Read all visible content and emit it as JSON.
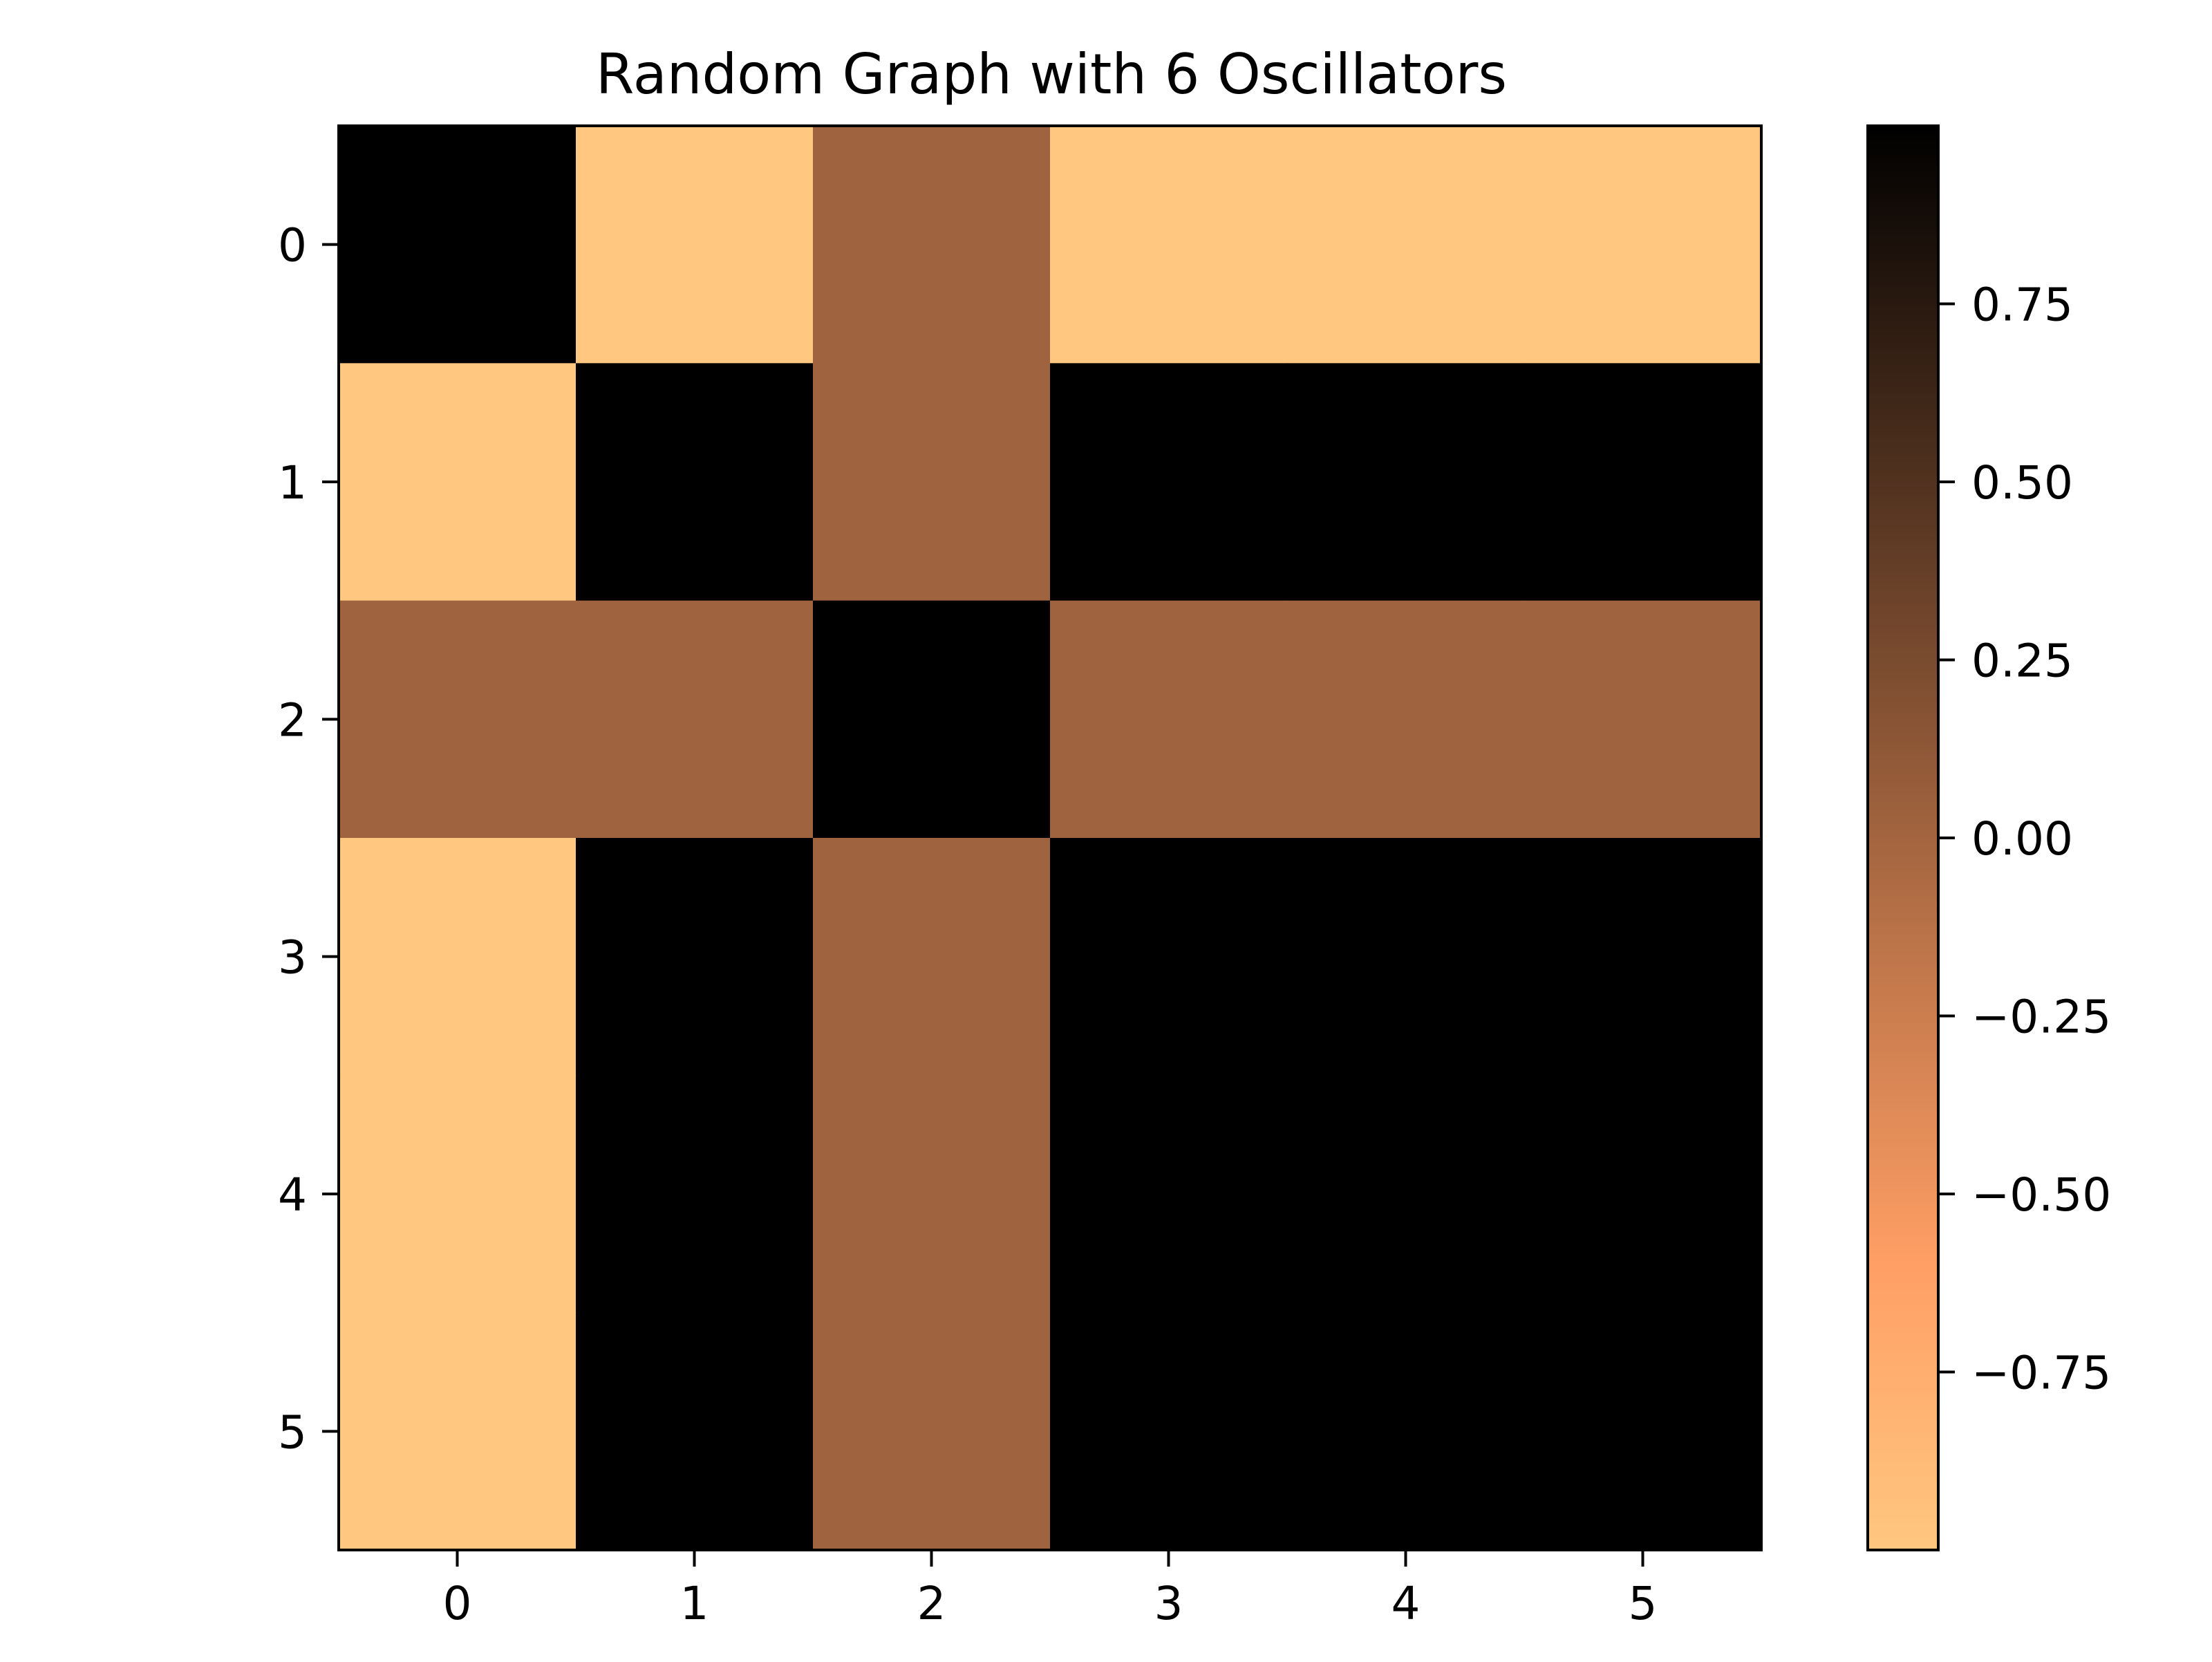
{
  "chart_data": {
    "type": "heatmap",
    "title": "Random Graph with 6 Oscillators",
    "xlabel": "",
    "ylabel": "",
    "x_categories": [
      "0",
      "1",
      "2",
      "3",
      "4",
      "5"
    ],
    "y_categories": [
      "0",
      "1",
      "2",
      "3",
      "4",
      "5"
    ],
    "values": [
      [
        1.0,
        -1.0,
        0.0,
        -1.0,
        -1.0,
        -1.0
      ],
      [
        -1.0,
        1.0,
        0.0,
        1.0,
        1.0,
        1.0
      ],
      [
        0.0,
        0.0,
        1.0,
        0.0,
        0.0,
        0.0
      ],
      [
        -1.0,
        1.0,
        0.0,
        1.0,
        1.0,
        1.0
      ],
      [
        -1.0,
        1.0,
        0.0,
        1.0,
        1.0,
        1.0
      ],
      [
        -1.0,
        1.0,
        0.0,
        1.0,
        1.0,
        1.0
      ]
    ],
    "colormap": "copper_r",
    "value_range": [
      -1.0,
      1.0
    ],
    "grid": false,
    "colorbar": {
      "position": "right",
      "ticks": [
        0.75,
        0.5,
        0.25,
        0.0,
        -0.25,
        -0.5,
        -0.75
      ],
      "tick_labels": [
        "0.75",
        "0.50",
        "0.25",
        "0.00",
        "−0.25",
        "−0.50",
        "−0.75"
      ]
    }
  }
}
